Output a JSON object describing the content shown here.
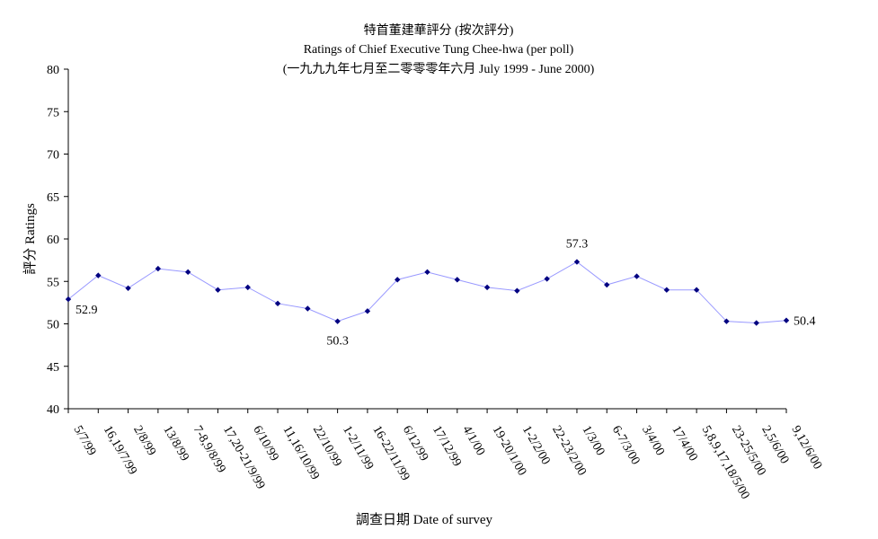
{
  "chart_data": {
    "type": "line",
    "title": "特首董建華評分 (按次評分)",
    "subtitle": "Ratings of Chief Executive Tung Chee-hwa (per poll)",
    "subtitle2": "(一九九九年七月至二零零零年六月 July 1999 - June 2000)",
    "xlabel": "調查日期 Date of survey",
    "ylabel": "評分 Ratings",
    "ylim": [
      40,
      80
    ],
    "yticks": [
      "40",
      "45",
      "50",
      "55",
      "60",
      "65",
      "70",
      "75",
      "80"
    ],
    "grid": false,
    "legend": "none",
    "line_color": "#9999ff",
    "marker_color": "#000080",
    "categories": [
      "5/7/99",
      "16,19/7/99",
      "2/8/99",
      "13/8/99",
      "7-8,9/8/99",
      "17,20-21/9/99",
      "6/10/99",
      "11,16/10/99",
      "22/10/99",
      "1-2/11/99",
      "16-22/11/99",
      "6/12/99",
      "17/12/99",
      "4/1/00",
      "19-20/1/00",
      "1-2/2/00",
      "22-23/2/00",
      "1/3/00",
      "6-7/3/00",
      "3/4/00",
      "17/4/00",
      "5,8,9,17,18/5/00",
      "23-25/5/00",
      "2,5/6/00",
      "9,12/6/00"
    ],
    "series": [
      {
        "values": [
          52.9,
          55.7,
          54.2,
          56.5,
          56.1,
          54.0,
          54.3,
          52.4,
          51.8,
          50.3,
          51.5,
          55.2,
          56.1,
          55.2,
          54.3,
          53.9,
          55.3,
          57.3,
          54.6,
          55.6,
          54.0,
          54.0,
          50.3,
          50.1,
          50.4
        ]
      }
    ],
    "annotations": [
      {
        "index": 0,
        "text": "52.9"
      },
      {
        "index": 9,
        "text": "50.3"
      },
      {
        "index": 17,
        "text": "57.3"
      },
      {
        "index": 24,
        "text": "50.4"
      }
    ]
  }
}
